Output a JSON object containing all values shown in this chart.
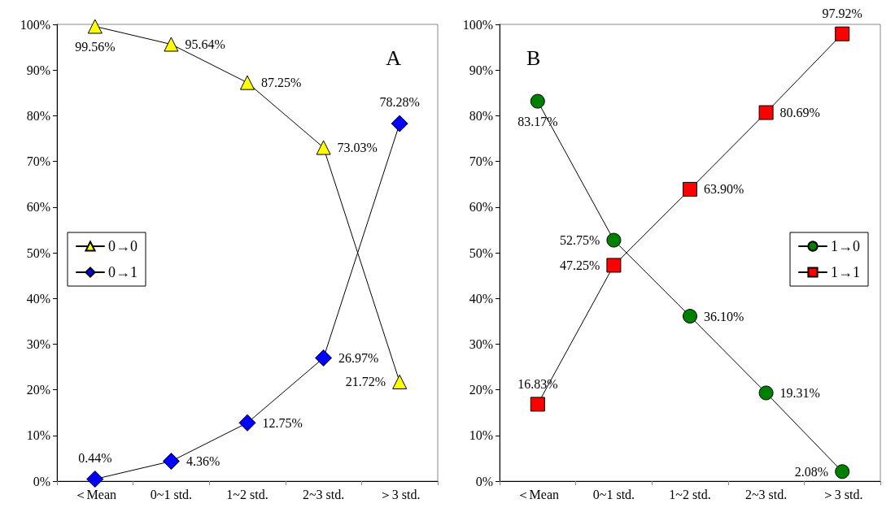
{
  "chart_data": [
    {
      "type": "line",
      "title": "A",
      "categories": [
        "＜Mean",
        "0~1 std.",
        "1~2 std.",
        "2~3 std.",
        "＞3 std."
      ],
      "ylim": [
        0,
        100
      ],
      "yticks": [
        {
          "value": 0,
          "label": "0%"
        },
        {
          "value": 10,
          "label": "10%"
        },
        {
          "value": 20,
          "label": "20%"
        },
        {
          "value": 30,
          "label": "30%"
        },
        {
          "value": 40,
          "label": "40%"
        },
        {
          "value": 50,
          "label": "50%"
        },
        {
          "value": 60,
          "label": "60%"
        },
        {
          "value": 70,
          "label": "70%"
        },
        {
          "value": 80,
          "label": "80%"
        },
        {
          "value": 90,
          "label": "90%"
        },
        {
          "value": 100,
          "label": "100%"
        }
      ],
      "grid": false,
      "legend": "left",
      "line_style": "solid",
      "series": [
        {
          "name": "0→0",
          "color": "#ffff00",
          "marker": "triangle",
          "values": [
            99.56,
            95.64,
            87.25,
            73.03,
            21.72
          ],
          "value_labels": [
            "99.56%",
            "95.64%",
            "87.25%",
            "73.03%",
            "21.72%"
          ]
        },
        {
          "name": "0→1",
          "color": "#0000ff",
          "marker": "diamond",
          "values": [
            0.44,
            4.36,
            12.75,
            26.97,
            78.28
          ],
          "value_labels": [
            "0.44%",
            "4.36%",
            "12.75%",
            "26.97%",
            "78.28%"
          ]
        }
      ]
    },
    {
      "type": "line",
      "title": "B",
      "categories": [
        "＜Mean",
        "0~1 std.",
        "1~2 std.",
        "2~3 std.",
        "＞3 std."
      ],
      "ylim": [
        0,
        100
      ],
      "yticks": [
        {
          "value": 0,
          "label": "0%"
        },
        {
          "value": 10,
          "label": "10%"
        },
        {
          "value": 20,
          "label": "20%"
        },
        {
          "value": 30,
          "label": "30%"
        },
        {
          "value": 40,
          "label": "40%"
        },
        {
          "value": 50,
          "label": "50%"
        },
        {
          "value": 60,
          "label": "60%"
        },
        {
          "value": 70,
          "label": "70%"
        },
        {
          "value": 80,
          "label": "80%"
        },
        {
          "value": 90,
          "label": "90%"
        },
        {
          "value": 100,
          "label": "100%"
        }
      ],
      "grid": false,
      "legend": "right",
      "line_style": "solid",
      "series": [
        {
          "name": "1→0",
          "color": "#008000",
          "marker": "circle",
          "values": [
            83.17,
            52.75,
            36.1,
            19.31,
            2.08
          ],
          "value_labels": [
            "83.17%",
            "52.75%",
            "36.10%",
            "19.31%",
            "2.08%"
          ]
        },
        {
          "name": "1→1",
          "color": "#ff0000",
          "marker": "square",
          "values": [
            16.83,
            47.25,
            63.9,
            80.69,
            97.92
          ],
          "value_labels": [
            "16.83%",
            "47.25%",
            "63.90%",
            "80.69%",
            "97.92%"
          ]
        }
      ]
    }
  ]
}
